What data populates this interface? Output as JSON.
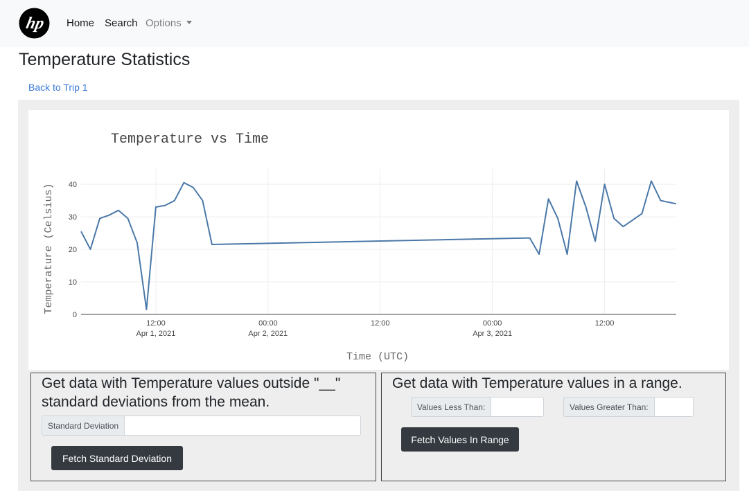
{
  "nav": {
    "logo_text": "hp",
    "items": [
      {
        "label": "Home"
      },
      {
        "label": "Search"
      },
      {
        "label": "Options"
      }
    ]
  },
  "page": {
    "title": "Temperature Statistics",
    "back_link": "Back to Trip 1"
  },
  "colors": {
    "line": "#4a78a8",
    "button": "#343a40",
    "panel": "#eeeeee",
    "link": "#3b7ad9"
  },
  "chart_data": {
    "type": "line",
    "title": "Temperature vs Time",
    "xlabel": "Time (UTC)",
    "ylabel": "Temperature (Celsius)",
    "ylim": [
      0,
      43
    ],
    "y_ticks": [
      0,
      10,
      20,
      30,
      40
    ],
    "x_ticks": [
      {
        "time": "2021-04-01T12:00",
        "line1": "12:00",
        "line2": "Apr 1, 2021"
      },
      {
        "time": "2021-04-02T00:00",
        "line1": "00:00",
        "line2": "Apr 2, 2021"
      },
      {
        "time": "2021-04-02T12:00",
        "line1": "12:00",
        "line2": ""
      },
      {
        "time": "2021-04-03T00:00",
        "line1": "00:00",
        "line2": "Apr 3, 2021"
      },
      {
        "time": "2021-04-03T12:00",
        "line1": "12:00",
        "line2": ""
      }
    ],
    "xlim": [
      "2021-04-01T04:00",
      "2021-04-03T19:40"
    ],
    "grid": true,
    "series": [
      {
        "x": [
          "2021-04-01T04:00",
          "2021-04-01T05:00",
          "2021-04-01T06:00",
          "2021-04-01T07:00",
          "2021-04-01T08:00",
          "2021-04-01T09:00",
          "2021-04-01T10:00",
          "2021-04-01T11:00",
          "2021-04-01T12:00",
          "2021-04-01T13:00",
          "2021-04-01T14:00",
          "2021-04-01T15:00",
          "2021-04-01T16:00",
          "2021-04-01T17:00",
          "2021-04-01T18:00",
          "2021-04-03T04:00",
          "2021-04-03T05:00",
          "2021-04-03T06:00",
          "2021-04-03T07:00",
          "2021-04-03T08:00",
          "2021-04-03T09:00",
          "2021-04-03T10:00",
          "2021-04-03T11:00",
          "2021-04-03T12:00",
          "2021-04-03T13:00",
          "2021-04-03T14:00",
          "2021-04-03T16:00",
          "2021-04-03T17:00",
          "2021-04-03T18:00",
          "2021-04-03T19:40"
        ],
        "y": [
          25.5,
          20,
          29.5,
          30.5,
          32,
          29.5,
          22,
          1.5,
          33,
          33.5,
          35,
          40.5,
          39,
          35,
          21.5,
          23.5,
          18.5,
          35.5,
          29.5,
          18.5,
          41,
          33,
          22.5,
          40,
          29.5,
          27,
          31,
          41,
          35,
          34
        ]
      }
    ]
  },
  "stddev_form": {
    "heading": "Get data with Temperature values outside \"__\" standard deviations from the mean.",
    "label": "Standard Deviation",
    "value": "",
    "button": "Fetch Standard Deviation"
  },
  "range_form": {
    "heading": "Get data with Temperature values in a range.",
    "less_label": "Values Less Than:",
    "less_value": "",
    "greater_label": "Values Greater Than:",
    "greater_value": "",
    "button": "Fetch Values In Range"
  }
}
